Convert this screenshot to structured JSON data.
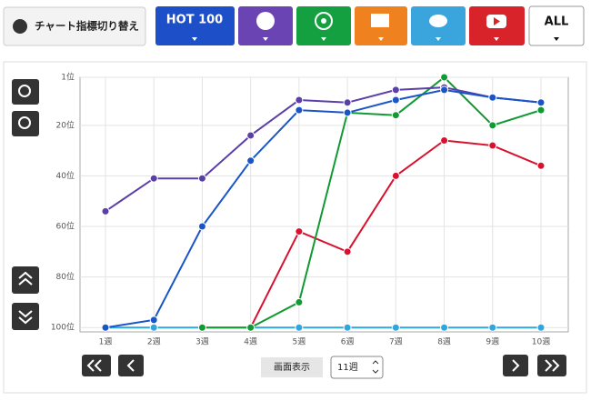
{
  "toolbar": {
    "label": "チャート指標切り替え",
    "hot100": "HOT 100",
    "all": "ALL"
  },
  "controls": {
    "display_label": "画面表示",
    "display_value": "11週"
  },
  "chart_data": {
    "type": "line",
    "categories": [
      "1週",
      "2週",
      "3週",
      "4週",
      "5週",
      "6週",
      "7週",
      "8週",
      "9週",
      "10週"
    ],
    "ylim": [
      1,
      101
    ],
    "inverted": true,
    "grid": true,
    "yticks": [
      {
        "value": 1,
        "label": "1位"
      },
      {
        "value": 20,
        "label": "20位"
      },
      {
        "value": 40,
        "label": "40位"
      },
      {
        "value": 60,
        "label": "60位"
      },
      {
        "value": 80,
        "label": "80位"
      },
      {
        "value": 100,
        "label": "100位"
      }
    ],
    "series": [
      {
        "color": "#2fa6de",
        "values": [
          100,
          100,
          100,
          100,
          100,
          100,
          100,
          100,
          100,
          100
        ]
      },
      {
        "color": "#d9112f",
        "values": [
          null,
          null,
          null,
          100,
          62,
          70,
          40,
          26,
          28,
          36
        ]
      },
      {
        "color": "#119933",
        "values": [
          null,
          null,
          100,
          100,
          90,
          15,
          16,
          1,
          20,
          14
        ]
      },
      {
        "color": "#5b3fa8",
        "values": [
          54,
          41,
          41,
          24,
          10,
          11,
          6,
          5,
          9,
          11
        ]
      },
      {
        "color": "#1a55c8",
        "values": [
          100,
          97,
          60,
          34,
          14,
          15,
          10,
          6,
          9,
          11
        ]
      }
    ]
  }
}
